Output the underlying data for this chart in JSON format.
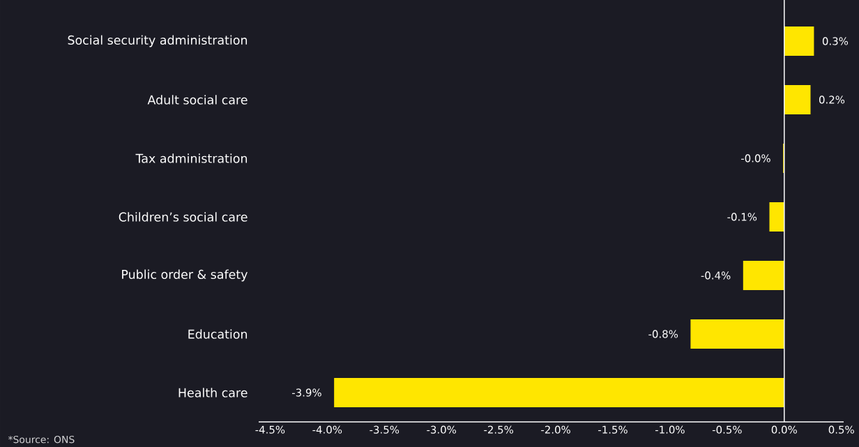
{
  "chart_data": {
    "type": "bar",
    "orientation": "horizontal",
    "categories": [
      "Social security administration",
      "Adult social care",
      "Tax administration",
      "Children’s social care",
      "Public order & safety",
      "Education",
      "Health care"
    ],
    "values": [
      0.26,
      0.23,
      -0.01,
      -0.13,
      -0.36,
      -0.82,
      -3.94
    ],
    "value_labels": [
      "0.3%",
      "0.2%",
      "-0.0%",
      "-0.1%",
      "-0.4%",
      "-0.8%",
      "-3.9%"
    ],
    "color": "#ffe600",
    "xlim": [
      -4.6,
      0.52
    ],
    "xticks": [
      {
        "value": -4.5,
        "label": "-4.5%"
      },
      {
        "value": -4.0,
        "label": "-4.0%"
      },
      {
        "value": -3.5,
        "label": "-3.5%"
      },
      {
        "value": -3.0,
        "label": "-3.0%"
      },
      {
        "value": -2.5,
        "label": "-2.5%"
      },
      {
        "value": -2.0,
        "label": "-2.0%"
      },
      {
        "value": -1.5,
        "label": "-1.5%"
      },
      {
        "value": -1.0,
        "label": "-1.0%"
      },
      {
        "value": -0.5,
        "label": "-0.5%"
      },
      {
        "value": 0.0,
        "label": "0.0%"
      },
      {
        "value": 0.5,
        "label": "0.5%"
      }
    ],
    "ref_lines": [
      {
        "axis": "x",
        "value": 0,
        "color": "#ffffff"
      }
    ],
    "grid": false,
    "annotations": [
      "*Source: ONS"
    ]
  }
}
